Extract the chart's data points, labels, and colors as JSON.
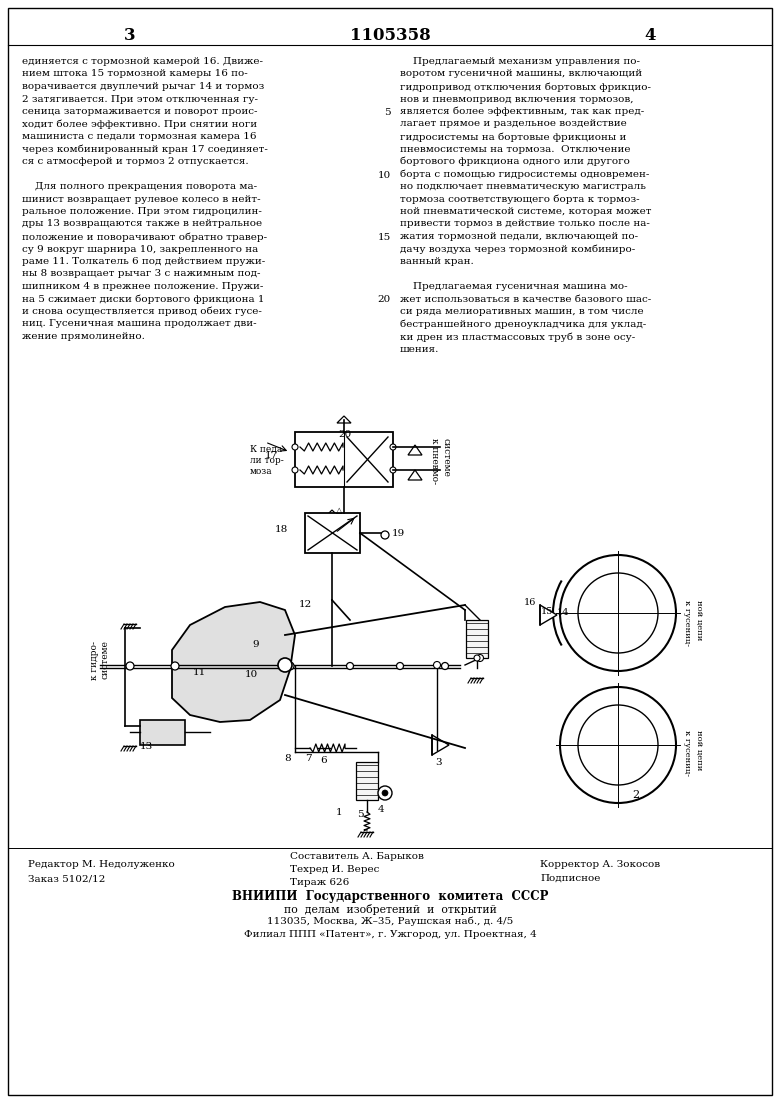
{
  "page_number_left": "3",
  "patent_number": "1105358",
  "page_number_right": "4",
  "left_lines": [
    "единяется с тормозной камерой 16. Движе-",
    "нием штока 15 тормозной камеры 16 по-",
    "ворачивается двуплечий рычаг 14 и тормоз",
    "2 затягивается. При этом отключенная гу-",
    "сеница затормаживается и поворот проис-",
    "ходит более эффективно. При снятии ноги",
    "машиниста с педали тормозная камера 16",
    "через комбинированный кран 17 соединяет-",
    "ся с атмосферой и тормоз 2 отпускается.",
    "",
    "    Для полного прекращения поворота ма-",
    "шинист возвращает рулевое колесо в нейт-",
    "ральное положение. При этом гидроцилин-",
    "дры 13 возвращаются также в нейтральное",
    "положение и поворачивают обратно травер-",
    "су 9 вокруг шарнира 10, закрепленного на",
    "раме 11. Толкатель 6 под действием пружи-",
    "ны 8 возвращает рычаг 3 с нажимным под-",
    "шипником 4 в прежнее положение. Пружи-",
    "на 5 сжимает диски бортового фрикциона 1",
    "и снова осуществляется привод обеих гусе-",
    "ниц. Гусеничная машина продолжает дви-",
    "жение прямолинейно."
  ],
  "right_lines": [
    "    Предлагаемый механизм управления по-",
    "воротом гусеничной машины, включающий",
    "гидропривод отключения бортовых фрикцио-",
    "нов и пневмопривод включения тормозов,",
    "является более эффективным, так как пред-",
    "лагает прямое и раздельное воздействие",
    "гидросистемы на бортовые фрикционы и",
    "пневмосистемы на тормоза.  Отключение",
    "бортового фрикциона одного или другого",
    "борта с помощью гидросистемы одновремен-",
    "но подключает пневматическую магистраль",
    "тормоза соответствующего борта к тормоз-",
    "ной пневматической системе, которая может",
    "привести тормоз в действие только после на-",
    "жатия тормозной педали, включающей по-",
    "дачу воздуха через тормозной комбиниро-",
    "ванный кран.",
    "",
    "    Предлагаемая гусеничная машина мо-",
    "жет использоваться в качестве базового шас-",
    "си ряда мелиоративных машин, в том числе",
    "бестраншейного дреноукладчика для уклад-",
    "ки дрен из пластмассовых труб в зоне осу-",
    "шения."
  ],
  "line_num_rows": [
    4,
    9,
    14,
    19
  ],
  "line_nums": [
    "5",
    "10",
    "15",
    "20"
  ],
  "footer_editor": "Редактор М. Недолуженко",
  "footer_order": "Заказ 5102/12",
  "footer_composer": "Составитель А. Барыков",
  "footer_techred": "Техред И. Верес",
  "footer_tirazh": "Тираж 626",
  "footer_corrector": "Корректор А. Зокосов",
  "footer_podpisnoe": "Подписное",
  "footer_vnipi_line1": "ВНИИПИ  Государственного  комитета  СССР",
  "footer_vnipi_line2": "по  делам  изобретений  и  открытий",
  "footer_vnipi_line3": "113035, Москва, Ж–35, Раушская наб., д. 4/5",
  "footer_filial": "Филиал ППП «Патент», г. Ужгород, ул. Проектная, 4",
  "bg_color": "#ffffff",
  "text_color": "#000000"
}
